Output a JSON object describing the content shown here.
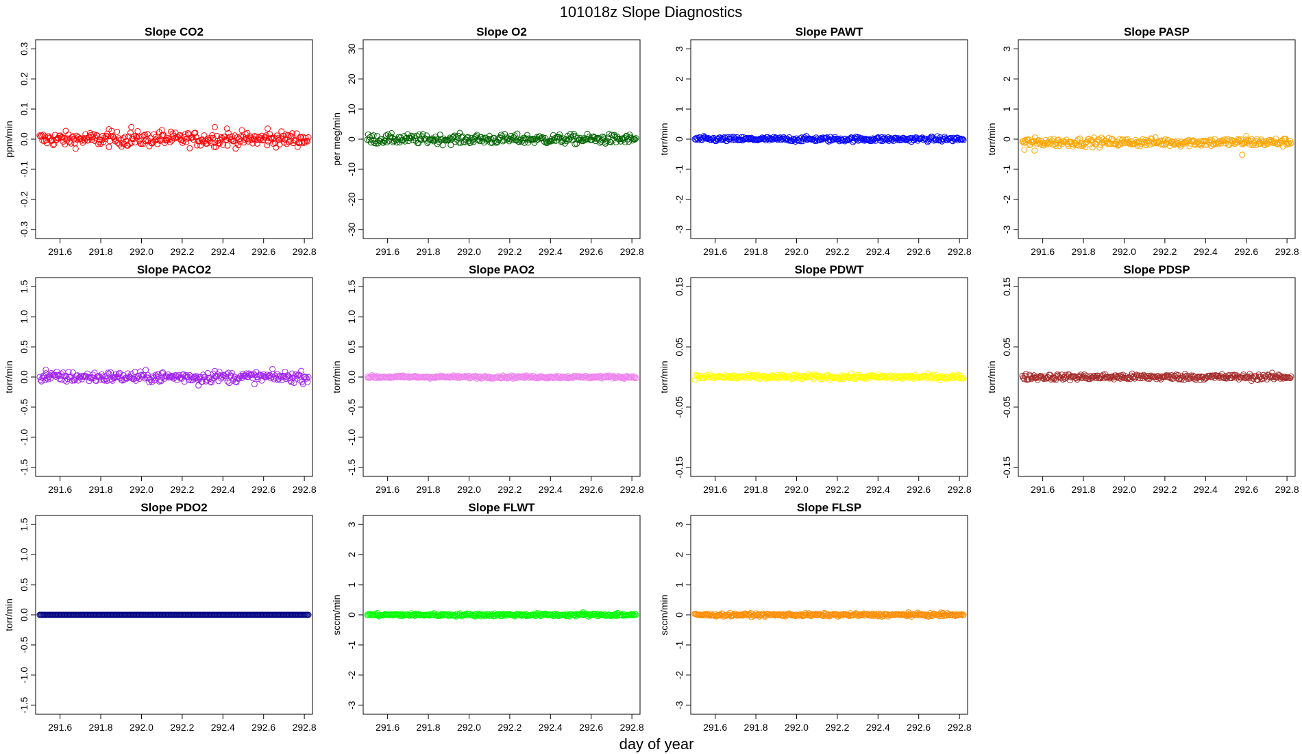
{
  "figure": {
    "title": "101018z   Slope Diagnostics",
    "xlabel": "day of year"
  },
  "chart_data": [
    {
      "type": "scatter",
      "title": "Slope CO2",
      "ylabel": "ppm/min",
      "color": "#ff0000",
      "xlim": [
        291.48,
        292.84
      ],
      "ylim": [
        -0.33,
        0.33
      ],
      "yticks": [
        "-0.3",
        "-0.2",
        "-0.1",
        "0.0",
        "0.1",
        "0.2",
        "0.3"
      ],
      "ytick_values": [
        -0.3,
        -0.2,
        -0.1,
        0,
        0.1,
        0.2,
        0.3
      ],
      "xticks": [
        "291.6",
        "291.8",
        "292.0",
        "292.2",
        "292.4",
        "292.6",
        "292.8"
      ],
      "xtick_values": [
        291.6,
        291.8,
        292.0,
        292.2,
        292.4,
        292.6,
        292.8
      ],
      "x_range": [
        291.5,
        292.82
      ],
      "n_points": 300,
      "y_center": 0.0,
      "y_spread": 0.012,
      "outliers": [
        [
          291.84,
          0.033
        ],
        [
          291.95,
          0.04
        ],
        [
          292.1,
          0.03
        ],
        [
          292.36,
          0.04
        ],
        [
          292.42,
          0.035
        ],
        [
          292.62,
          0.035
        ]
      ]
    },
    {
      "type": "scatter",
      "title": "Slope O2",
      "ylabel": "per meg/min",
      "color": "#006400",
      "xlim": [
        291.48,
        292.84
      ],
      "ylim": [
        -33,
        33
      ],
      "yticks": [
        "-30",
        "-20",
        "-10",
        "0",
        "10",
        "20",
        "30"
      ],
      "ytick_values": [
        -30,
        -20,
        -10,
        0,
        10,
        20,
        30
      ],
      "xticks": [
        "291.6",
        "291.8",
        "292.0",
        "292.2",
        "292.4",
        "292.6",
        "292.8"
      ],
      "xtick_values": [
        291.6,
        291.8,
        292.0,
        292.2,
        292.4,
        292.6,
        292.8
      ],
      "x_range": [
        291.5,
        292.82
      ],
      "n_points": 300,
      "y_center": 0.0,
      "y_spread": 0.8,
      "outliers": []
    },
    {
      "type": "scatter",
      "title": "Slope PAWT",
      "ylabel": "torr/min",
      "color": "#0000ff",
      "xlim": [
        291.48,
        292.84
      ],
      "ylim": [
        -3.3,
        3.3
      ],
      "yticks": [
        "-3",
        "-2",
        "-1",
        "0",
        "1",
        "2",
        "3"
      ],
      "ytick_values": [
        -3,
        -2,
        -1,
        0,
        1,
        2,
        3
      ],
      "xticks": [
        "291.6",
        "291.8",
        "292.0",
        "292.2",
        "292.4",
        "292.6",
        "292.8"
      ],
      "xtick_values": [
        291.6,
        291.8,
        292.0,
        292.2,
        292.4,
        292.6,
        292.8
      ],
      "x_range": [
        291.5,
        292.82
      ],
      "n_points": 300,
      "y_center": 0.0,
      "y_spread": 0.04,
      "outliers": []
    },
    {
      "type": "scatter",
      "title": "Slope PASP",
      "ylabel": "torr/min",
      "color": "#ffa500",
      "xlim": [
        291.48,
        292.84
      ],
      "ylim": [
        -3.3,
        3.3
      ],
      "yticks": [
        "-3",
        "-2",
        "-1",
        "0",
        "1",
        "2",
        "3"
      ],
      "ytick_values": [
        -3,
        -2,
        -1,
        0,
        1,
        2,
        3
      ],
      "xticks": [
        "291.6",
        "291.8",
        "292.0",
        "292.2",
        "292.4",
        "292.6",
        "292.8"
      ],
      "xtick_values": [
        291.6,
        291.8,
        292.0,
        292.2,
        292.4,
        292.6,
        292.8
      ],
      "x_range": [
        291.5,
        292.82
      ],
      "n_points": 300,
      "y_center": -0.1,
      "y_spread": 0.07,
      "outliers": [
        [
          291.51,
          -0.35
        ],
        [
          291.56,
          -0.38
        ],
        [
          292.58,
          -0.52
        ],
        [
          292.6,
          0.1
        ]
      ]
    },
    {
      "type": "scatter",
      "title": "Slope PACO2",
      "ylabel": "torr/min",
      "color": "#a020f0",
      "xlim": [
        291.48,
        292.84
      ],
      "ylim": [
        -1.65,
        1.65
      ],
      "yticks": [
        "-1.5",
        "-1.0",
        "-0.5",
        "0.0",
        "0.5",
        "1.0",
        "1.5"
      ],
      "ytick_values": [
        -1.5,
        -1,
        -0.5,
        0,
        0.5,
        1,
        1.5
      ],
      "xticks": [
        "291.6",
        "291.8",
        "292.0",
        "292.2",
        "292.4",
        "292.6",
        "292.8"
      ],
      "xtick_values": [
        291.6,
        291.8,
        292.0,
        292.2,
        292.4,
        292.6,
        292.8
      ],
      "x_range": [
        291.5,
        292.82
      ],
      "n_points": 300,
      "y_center": 0.0,
      "y_spread": 0.045,
      "outliers": [
        [
          291.53,
          0.12
        ],
        [
          292.28,
          -0.14
        ],
        [
          292.36,
          0.1
        ]
      ]
    },
    {
      "type": "scatter",
      "title": "Slope PAO2",
      "ylabel": "torr/min",
      "color": "#ee82ee",
      "xlim": [
        291.48,
        292.84
      ],
      "ylim": [
        -1.65,
        1.65
      ],
      "yticks": [
        "-1.5",
        "-1.0",
        "-0.5",
        "0.0",
        "0.5",
        "1.0",
        "1.5"
      ],
      "ytick_values": [
        -1.5,
        -1,
        -0.5,
        0,
        0.5,
        1,
        1.5
      ],
      "xticks": [
        "291.6",
        "291.8",
        "292.0",
        "292.2",
        "292.4",
        "292.6",
        "292.8"
      ],
      "xtick_values": [
        291.6,
        291.8,
        292.0,
        292.2,
        292.4,
        292.6,
        292.8
      ],
      "x_range": [
        291.5,
        292.82
      ],
      "n_points": 300,
      "y_center": 0.0,
      "y_spread": 0.012,
      "outliers": []
    },
    {
      "type": "scatter",
      "title": "Slope PDWT",
      "ylabel": "torr/min",
      "color": "#ffff00",
      "xlim": [
        291.48,
        292.84
      ],
      "ylim": [
        -0.165,
        0.165
      ],
      "yticks": [
        "-0.15",
        "-0.05",
        "0.05",
        "0.15"
      ],
      "ytick_values": [
        -0.15,
        -0.05,
        0.05,
        0.15
      ],
      "xticks": [
        "291.6",
        "291.8",
        "292.0",
        "292.2",
        "292.4",
        "292.6",
        "292.8"
      ],
      "xtick_values": [
        291.6,
        291.8,
        292.0,
        292.2,
        292.4,
        292.6,
        292.8
      ],
      "x_range": [
        291.5,
        292.82
      ],
      "n_points": 300,
      "y_center": 0.0,
      "y_spread": 0.002,
      "outliers": []
    },
    {
      "type": "scatter",
      "title": "Slope PDSP",
      "ylabel": "torr/min",
      "color": "#a52a2a",
      "xlim": [
        291.48,
        292.84
      ],
      "ylim": [
        -0.165,
        0.165
      ],
      "yticks": [
        "-0.15",
        "-0.05",
        "0.05",
        "0.15"
      ],
      "ytick_values": [
        -0.15,
        -0.05,
        0.05,
        0.15
      ],
      "xticks": [
        "291.6",
        "291.8",
        "292.0",
        "292.2",
        "292.4",
        "292.6",
        "292.8"
      ],
      "xtick_values": [
        291.6,
        291.8,
        292.0,
        292.2,
        292.4,
        292.6,
        292.8
      ],
      "x_range": [
        291.5,
        292.82
      ],
      "n_points": 300,
      "y_center": 0.0,
      "y_spread": 0.0025,
      "outliers": []
    },
    {
      "type": "scatter",
      "title": "Slope PDO2",
      "ylabel": "torr/min",
      "color": "#000080",
      "xlim": [
        291.48,
        292.84
      ],
      "ylim": [
        -1.65,
        1.65
      ],
      "yticks": [
        "-1.5",
        "-1.0",
        "-0.5",
        "0.0",
        "0.5",
        "1.0",
        "1.5"
      ],
      "ytick_values": [
        -1.5,
        -1,
        -0.5,
        0,
        0.5,
        1,
        1.5
      ],
      "xticks": [
        "291.6",
        "291.8",
        "292.0",
        "292.2",
        "292.4",
        "292.6",
        "292.8"
      ],
      "xtick_values": [
        291.6,
        291.8,
        292.0,
        292.2,
        292.4,
        292.6,
        292.8
      ],
      "x_range": [
        291.5,
        292.82
      ],
      "n_points": 300,
      "y_center": 0.0,
      "y_spread": 0.0,
      "outliers": []
    },
    {
      "type": "scatter",
      "title": "Slope FLWT",
      "ylabel": "sccm/min",
      "color": "#00ff00",
      "xlim": [
        291.48,
        292.84
      ],
      "ylim": [
        -3.3,
        3.3
      ],
      "yticks": [
        "-3",
        "-2",
        "-1",
        "0",
        "1",
        "2",
        "3"
      ],
      "ytick_values": [
        -3,
        -2,
        -1,
        0,
        1,
        2,
        3
      ],
      "xticks": [
        "291.6",
        "291.8",
        "292.0",
        "292.2",
        "292.4",
        "292.6",
        "292.8"
      ],
      "xtick_values": [
        291.6,
        291.8,
        292.0,
        292.2,
        292.4,
        292.6,
        292.8
      ],
      "x_range": [
        291.5,
        292.82
      ],
      "n_points": 300,
      "y_center": 0.0,
      "y_spread": 0.025,
      "outliers": [
        [
          292.56,
          0.08
        ],
        [
          292.73,
          0.06
        ]
      ]
    },
    {
      "type": "scatter",
      "title": "Slope FLSP",
      "ylabel": "sccm/min",
      "color": "#ff8c00",
      "xlim": [
        291.48,
        292.84
      ],
      "ylim": [
        -3.3,
        3.3
      ],
      "yticks": [
        "-3",
        "-2",
        "-1",
        "0",
        "1",
        "2",
        "3"
      ],
      "ytick_values": [
        -3,
        -2,
        -1,
        0,
        1,
        2,
        3
      ],
      "xticks": [
        "291.6",
        "291.8",
        "292.0",
        "292.2",
        "292.4",
        "292.6",
        "292.8"
      ],
      "xtick_values": [
        291.6,
        291.8,
        292.0,
        292.2,
        292.4,
        292.6,
        292.8
      ],
      "x_range": [
        291.5,
        292.82
      ],
      "n_points": 300,
      "y_center": 0.0,
      "y_spread": 0.025,
      "outliers": [
        [
          292.55,
          0.08
        ],
        [
          292.72,
          0.06
        ]
      ]
    }
  ]
}
